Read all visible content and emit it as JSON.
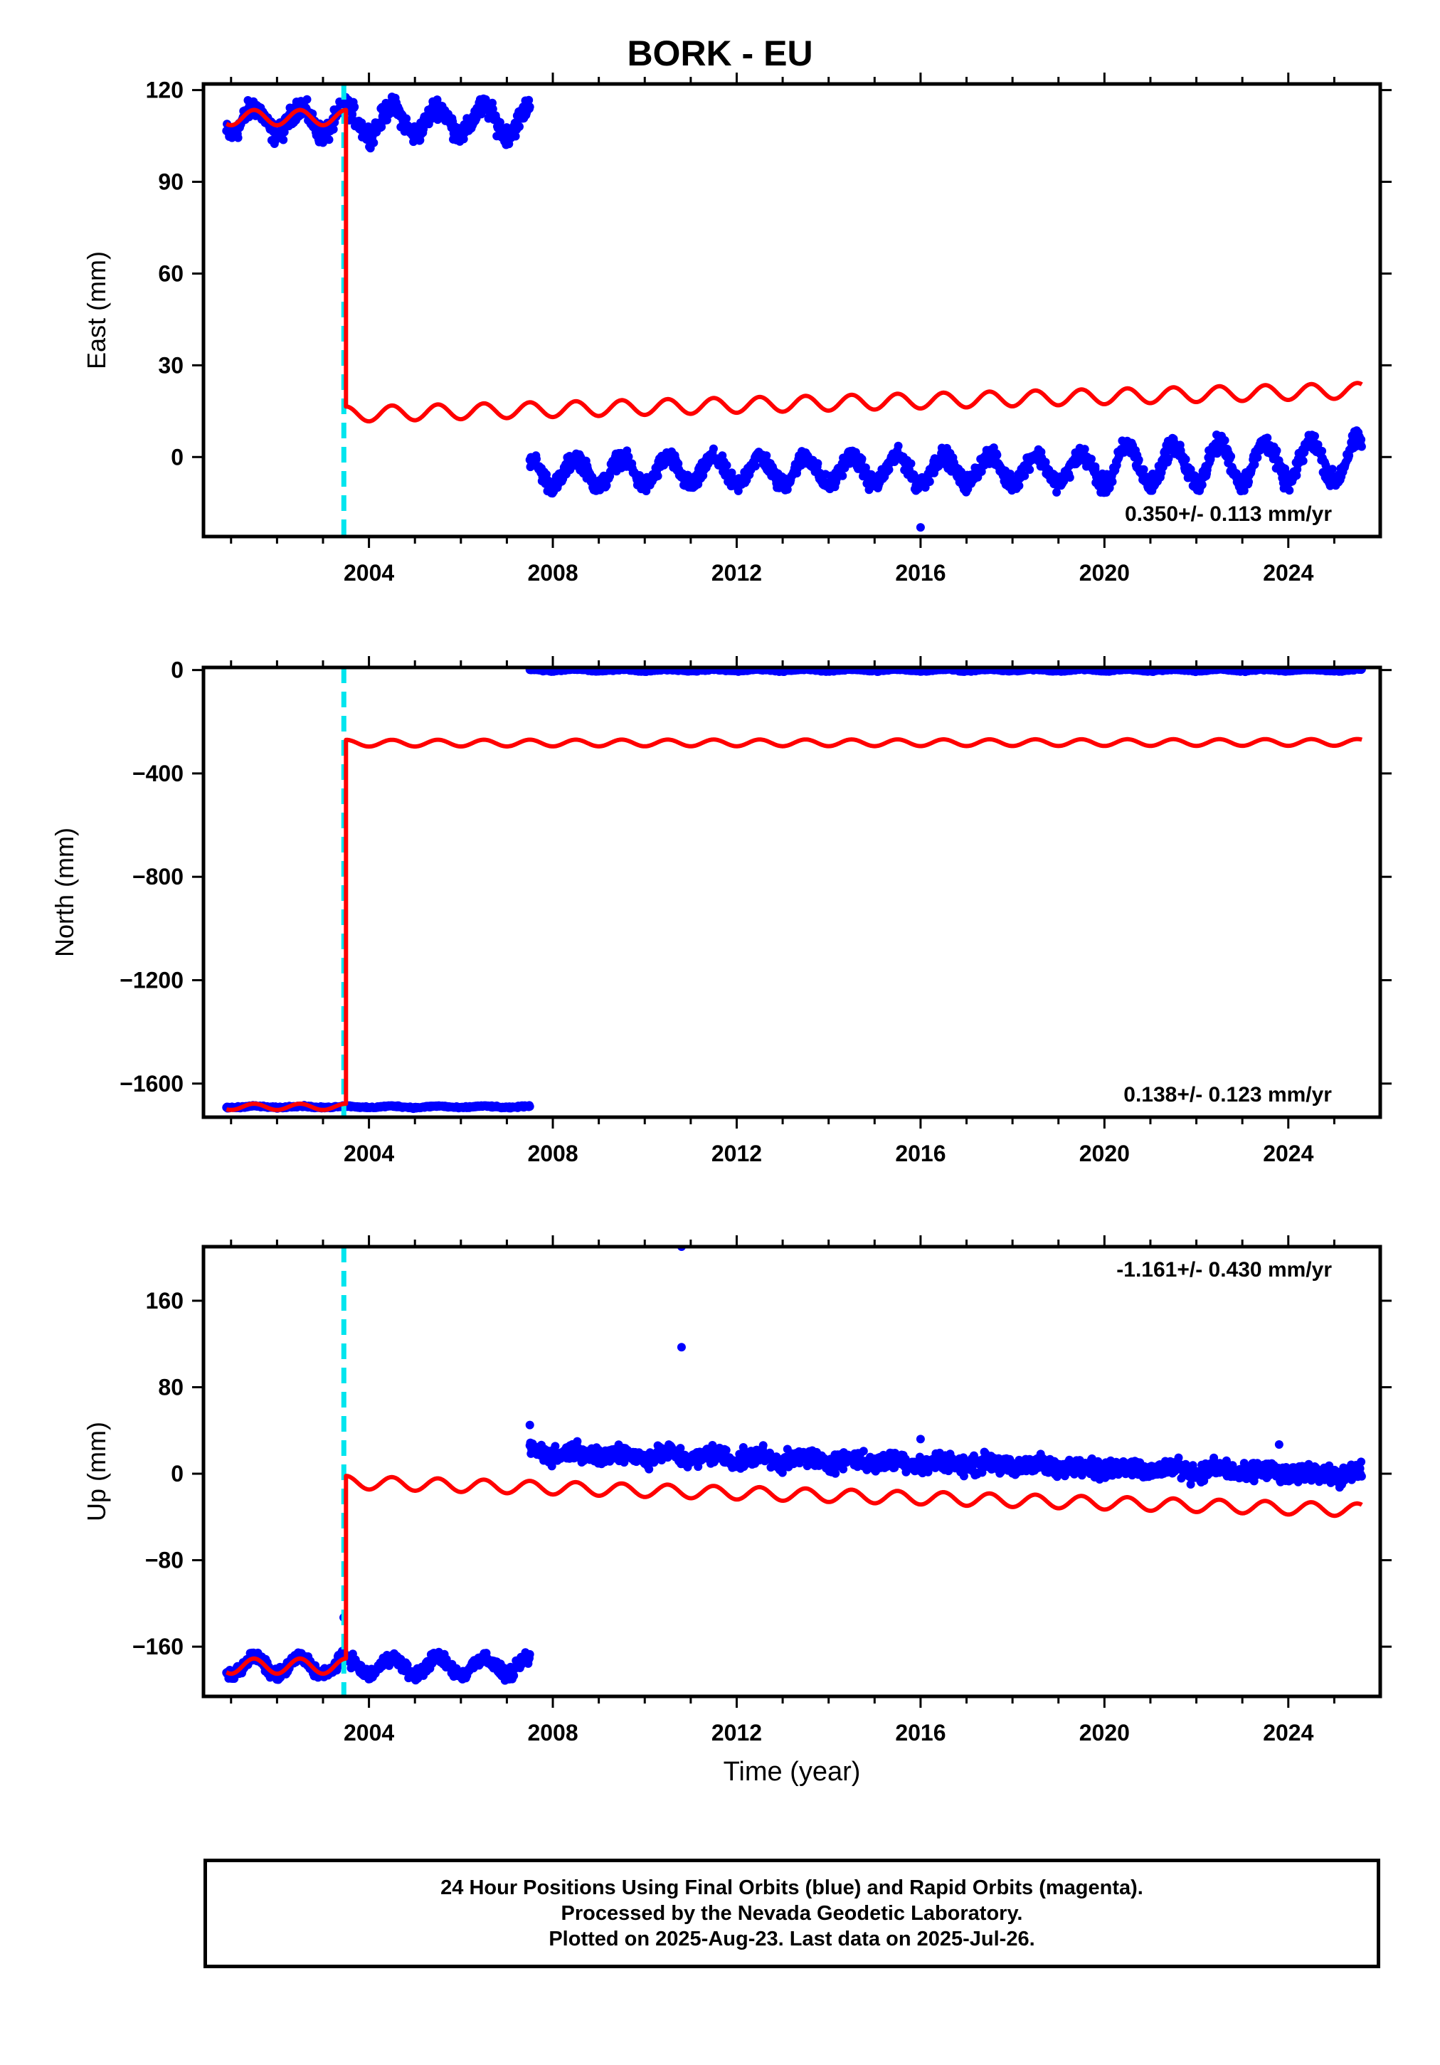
{
  "title": "BORK - EU",
  "colors": {
    "final_orbits": "#0000ff",
    "model_fit": "#ff0000",
    "offset_marker": "#00e5ee",
    "frame": "#000000"
  },
  "xaxis": {
    "label": "Time (year)",
    "range": [
      2000.4,
      2026.0
    ],
    "ticks": [
      2004,
      2008,
      2012,
      2016,
      2020,
      2024
    ]
  },
  "offset_epoch": 2003.5,
  "chart_data": [
    {
      "type": "scatter",
      "ylabel": "East (mm)",
      "ylim": [
        -26,
        122
      ],
      "yticks": [
        0,
        30,
        60,
        90,
        120
      ],
      "rate_label": "0.350+/- 0.113 mm/yr",
      "rate_position": "bottom-right",
      "series": [
        {
          "name": "",
          "kind": "points",
          "segments": [
            {
              "t0": 2000.9,
              "t1": 2007.5,
              "base": 110,
              "trend": 0.0,
              "amp": 4.5,
              "noise": 2.8
            },
            {
              "t0": 2007.5,
              "t1": 2019.8,
              "base": -5,
              "trend": 0.1,
              "amp": 4.5,
              "noise": 2.3
            },
            {
              "t0": 2019.8,
              "t1": 2025.6,
              "base": -3,
              "trend": 0.35,
              "amp": 6.5,
              "noise": 2.6
            }
          ],
          "outliers": [
            {
              "x": 2015.9,
              "y": -11
            },
            {
              "x": 2016.0,
              "y": -23
            },
            {
              "x": 2016.2,
              "y": -4
            }
          ]
        },
        {
          "name": "",
          "kind": "line",
          "segments": [
            {
              "t0": 2000.9,
              "t1": 2003.5,
              "base": 111,
              "trend": 0.0,
              "amp": 2.5
            },
            {
              "t0": 2003.5,
              "t1": 2025.6,
              "base": 14,
              "trend": 0.35,
              "amp": 2.5
            }
          ]
        }
      ]
    },
    {
      "type": "scatter",
      "ylabel": "North (mm)",
      "ylim": [
        -1730,
        10
      ],
      "yticks": [
        0,
        -400,
        -800,
        -1200,
        -1600
      ],
      "rate_label": "0.138+/- 0.123 mm/yr",
      "rate_position": "bottom-right",
      "series": [
        {
          "name": "",
          "kind": "points",
          "segments": [
            {
              "t0": 2000.9,
              "t1": 2007.5,
              "base": -1690,
              "trend": 0.0,
              "amp": 3,
              "noise": 3
            },
            {
              "t0": 2007.5,
              "t1": 2025.6,
              "base": 0,
              "trend": 0.0,
              "amp": 3,
              "noise": 3
            }
          ],
          "outliers": []
        },
        {
          "name": "",
          "kind": "line",
          "segments": [
            {
              "t0": 2000.9,
              "t1": 2003.5,
              "base": -1690,
              "trend": 0.0,
              "amp": 12
            },
            {
              "t0": 2003.5,
              "t1": 2025.6,
              "base": -283,
              "trend": 0.14,
              "amp": 13
            }
          ]
        }
      ]
    },
    {
      "type": "scatter",
      "ylabel": "Up (mm)",
      "ylim": [
        -206,
        210
      ],
      "yticks": [
        160,
        80,
        0,
        -80,
        -160
      ],
      "rate_label": "-1.161+/- 0.430 mm/yr",
      "rate_position": "top-right",
      "series": [
        {
          "name": "",
          "kind": "points",
          "segments": [
            {
              "t0": 2000.9,
              "t1": 2007.5,
              "base": -178,
              "trend": 0.0,
              "amp": 8,
              "noise": 5
            },
            {
              "t0": 2007.5,
              "t1": 2025.6,
              "base": 20,
              "trend": -1.16,
              "amp": 3,
              "noise": 7
            }
          ],
          "outliers": [
            {
              "x": 2010.8,
              "y": 210
            },
            {
              "x": 2010.8,
              "y": 117
            },
            {
              "x": 2007.5,
              "y": 45
            },
            {
              "x": 2016.0,
              "y": 32
            },
            {
              "x": 2023.8,
              "y": 27
            },
            {
              "x": 2003.45,
              "y": -133
            }
          ]
        },
        {
          "name": "",
          "kind": "line",
          "segments": [
            {
              "t0": 2000.9,
              "t1": 2003.5,
              "base": -178,
              "trend": 0.0,
              "amp": 7
            },
            {
              "t0": 2003.5,
              "t1": 2025.6,
              "base": -8,
              "trend": -1.16,
              "amp": 6
            }
          ]
        }
      ]
    }
  ],
  "footer": {
    "line1": "24 Hour Positions Using Final Orbits (blue) and Rapid Orbits (magenta).",
    "line2": "Processed by the Nevada Geodetic Laboratory.",
    "line3": "Plotted on 2025-Aug-23. Last data on 2025-Jul-26."
  }
}
